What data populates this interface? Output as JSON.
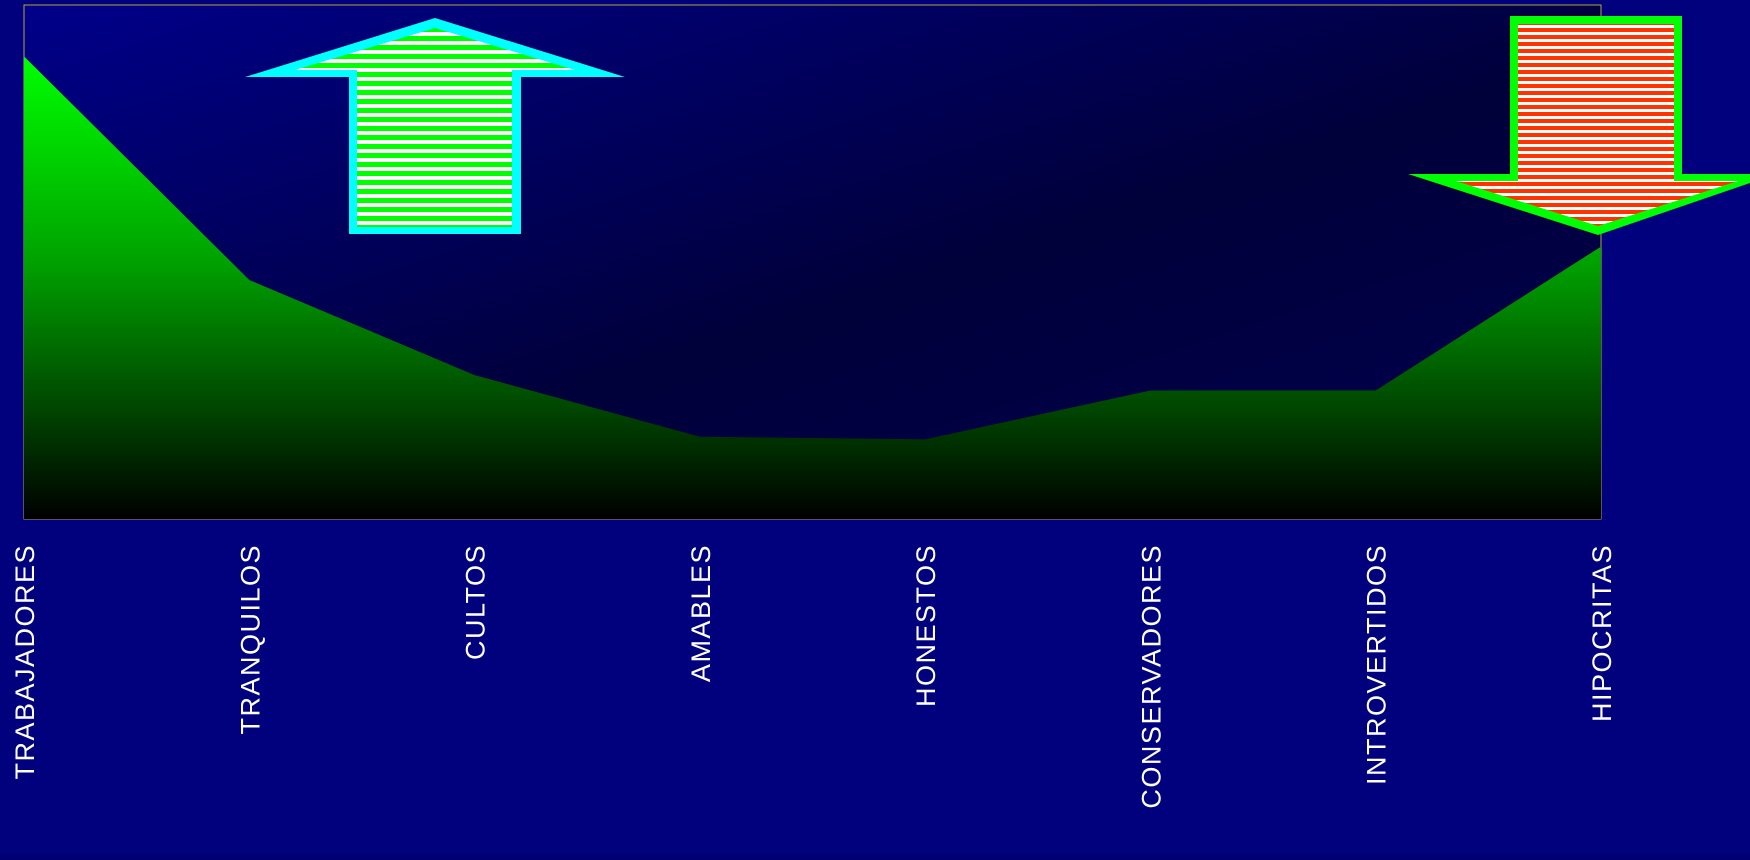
{
  "chart_data": {
    "type": "area",
    "categories": [
      "TRABAJADORES",
      "TRANQUILOS",
      "CULTOS",
      "AMABLES",
      "HONESTOS",
      "CONSERVADORES",
      "INTROVERTIDOS",
      "HIPOCRITAS"
    ],
    "series": [
      {
        "values": [
          90,
          46.5,
          28,
          16,
          15.5,
          25,
          25,
          53
        ]
      }
    ],
    "ylim": [
      0,
      100
    ],
    "grid": false,
    "legend": "none",
    "title": "",
    "xlabel": "",
    "ylabel": ""
  },
  "annotations": {
    "up_arrow_icon": "up-arrow-icon",
    "down_arrow_icon": "down-arrow-icon"
  },
  "colors": {
    "background": "#01017e",
    "plot_gradient_top": "#00008a",
    "plot_gradient_bottom": "#000030",
    "area_top": "#00ff00",
    "area_bottom": "#000000",
    "plot_border": "#b5a642",
    "label_color": "#ffffff",
    "up_arrow_outline": "#00ffff",
    "up_arrow_stripe": "#00ff00",
    "down_arrow_outline": "#00ff00",
    "down_arrow_stripe": "#ff3300"
  }
}
